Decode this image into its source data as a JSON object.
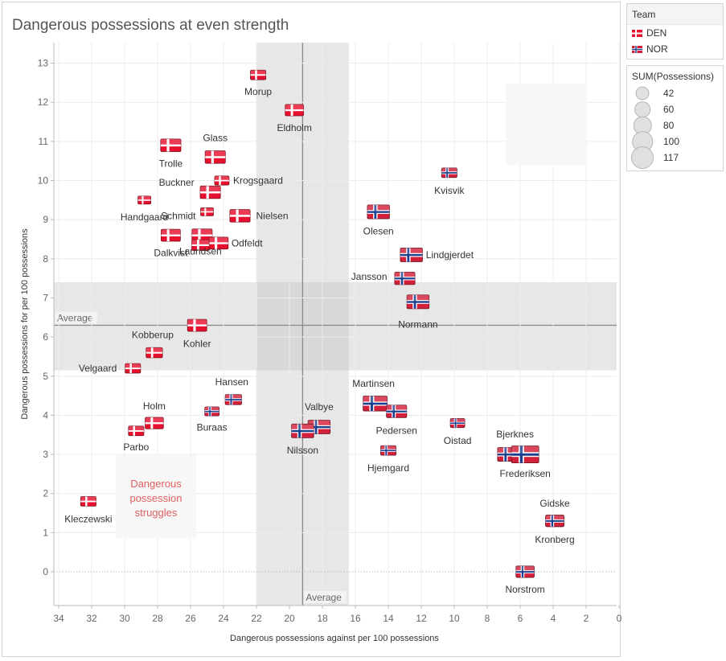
{
  "title": "Dangerous possessions at even strength",
  "legend_team": {
    "title": "Team",
    "items": [
      {
        "label": "DEN",
        "flag": "denmark-flag"
      },
      {
        "label": "NOR",
        "flag": "norway-flag"
      }
    ]
  },
  "legend_size": {
    "title": "SUM(Possessions)",
    "items": [
      {
        "label": "42",
        "value": 42
      },
      {
        "label": "60",
        "value": 60
      },
      {
        "label": "80",
        "value": 80
      },
      {
        "label": "100",
        "value": 100
      },
      {
        "label": "117",
        "value": 117
      }
    ]
  },
  "annotation": "Dangerous\npossession\nstruggles",
  "colors": {
    "denmark_red": "#e8102f",
    "norway_red": "#d4203b",
    "norway_blue": "#1b3f8f",
    "reference_band": "#e6e6e6",
    "reference_line": "#888888",
    "annotation_text": "#e06060",
    "annotation_bg": "#f7f7f7"
  },
  "chart_data": {
    "type": "scatter",
    "xlabel": "Dangerous possessions against per 100 possessions",
    "ylabel": "Dangerous possessions for per 100 possessions",
    "x_reversed": true,
    "xlim": [
      34.3,
      -0.3
    ],
    "ylim": [
      -0.8,
      13.6
    ],
    "x_ticks": [
      34,
      32,
      30,
      28,
      26,
      24,
      22,
      20,
      18,
      16,
      14,
      12,
      10,
      8,
      6,
      4,
      2,
      0
    ],
    "y_ticks": [
      0,
      1,
      2,
      3,
      4,
      5,
      6,
      7,
      8,
      9,
      10,
      11,
      12,
      13
    ],
    "grid": true,
    "x_average": 19.2,
    "y_average": 6.3,
    "x_band": [
      22.0,
      16.4
    ],
    "y_band": [
      5.15,
      7.4
    ],
    "x_average_label": "Average",
    "y_average_label": "Average",
    "points": [
      {
        "name": "Morup",
        "team": "DEN",
        "x": 21.9,
        "y": 12.7,
        "size": 55
      },
      {
        "name": "Eldholm",
        "team": "DEN",
        "x": 19.7,
        "y": 11.8,
        "size": 70
      },
      {
        "name": "Glass",
        "team": "DEN",
        "x": 24.5,
        "y": 10.6,
        "size": 80
      },
      {
        "name": "Trolle",
        "team": "DEN",
        "x": 27.2,
        "y": 10.9,
        "size": 80
      },
      {
        "name": "Krogsgaard",
        "team": "DEN",
        "x": 24.1,
        "y": 10.0,
        "size": 50
      },
      {
        "name": "Buckner",
        "team": "DEN",
        "x": 24.8,
        "y": 9.7,
        "size": 80
      },
      {
        "name": "Handgaard",
        "team": "DEN",
        "x": 28.8,
        "y": 9.5,
        "size": 42
      },
      {
        "name": "Schmidt",
        "team": "DEN",
        "x": 25.0,
        "y": 9.2,
        "size": 42
      },
      {
        "name": "Nielsen",
        "team": "DEN",
        "x": 23.0,
        "y": 9.1,
        "size": 80
      },
      {
        "name": "Dalkvist",
        "team": "DEN",
        "x": 27.2,
        "y": 8.6,
        "size": 75
      },
      {
        "name": "Lauridsen",
        "team": "DEN",
        "x": 25.3,
        "y": 8.6,
        "size": 80
      },
      {
        "name": "Odfeldt",
        "team": "DEN",
        "x": 24.3,
        "y": 8.4,
        "size": 75
      },
      {
        "name": "Lauridsen2",
        "team": "DEN",
        "x": 25.4,
        "y": 8.35,
        "size": 65,
        "label_hidden": true
      },
      {
        "name": "Kobberup",
        "team": "DEN",
        "x": 28.2,
        "y": 5.6,
        "size": 60
      },
      {
        "name": "Kohler",
        "team": "DEN",
        "x": 25.6,
        "y": 6.3,
        "size": 75
      },
      {
        "name": "Velgaard",
        "team": "DEN",
        "x": 29.5,
        "y": 5.2,
        "size": 55
      },
      {
        "name": "Holm",
        "team": "DEN",
        "x": 28.2,
        "y": 3.8,
        "size": 70
      },
      {
        "name": "Parbo",
        "team": "DEN",
        "x": 29.3,
        "y": 3.6,
        "size": 55
      },
      {
        "name": "Kleczewski",
        "team": "DEN",
        "x": 32.2,
        "y": 1.8,
        "size": 55
      },
      {
        "name": "Kvisvik",
        "team": "NOR",
        "x": 10.3,
        "y": 10.2,
        "size": 55
      },
      {
        "name": "Olesen",
        "team": "NOR",
        "x": 14.6,
        "y": 9.2,
        "size": 90
      },
      {
        "name": "Lindgjerdet",
        "team": "NOR",
        "x": 12.6,
        "y": 8.1,
        "size": 90
      },
      {
        "name": "Jansson",
        "team": "NOR",
        "x": 13.0,
        "y": 7.5,
        "size": 80
      },
      {
        "name": "Normann",
        "team": "NOR",
        "x": 12.2,
        "y": 6.9,
        "size": 90
      },
      {
        "name": "Hansen",
        "team": "NOR",
        "x": 23.4,
        "y": 4.4,
        "size": 60
      },
      {
        "name": "Buraas",
        "team": "NOR",
        "x": 24.7,
        "y": 4.1,
        "size": 50
      },
      {
        "name": "Martinsen",
        "team": "NOR",
        "x": 14.8,
        "y": 4.3,
        "size": 100
      },
      {
        "name": "Pedersen",
        "team": "NOR",
        "x": 13.5,
        "y": 4.1,
        "size": 80
      },
      {
        "name": "Valbye",
        "team": "NOR",
        "x": 18.2,
        "y": 3.7,
        "size": 90
      },
      {
        "name": "Nilsson",
        "team": "NOR",
        "x": 19.2,
        "y": 3.6,
        "size": 90
      },
      {
        "name": "Oistad",
        "team": "NOR",
        "x": 9.8,
        "y": 3.8,
        "size": 50
      },
      {
        "name": "Hjemgard",
        "team": "NOR",
        "x": 14.0,
        "y": 3.1,
        "size": 55
      },
      {
        "name": "Bjerknes",
        "team": "NOR",
        "x": 6.7,
        "y": 3.0,
        "size": 90
      },
      {
        "name": "Frederiksen",
        "team": "NOR",
        "x": 5.7,
        "y": 3.0,
        "size": 117
      },
      {
        "name": "Gidske",
        "team": "NOR",
        "x": 3.9,
        "y": 1.3,
        "size": 70
      },
      {
        "name": "Kronberg",
        "team": "NOR",
        "x": 3.9,
        "y": 1.3,
        "size": 70,
        "label_hidden": true
      },
      {
        "name": "Norstrom",
        "team": "NOR",
        "x": 5.7,
        "y": 0.0,
        "size": 70
      }
    ]
  }
}
